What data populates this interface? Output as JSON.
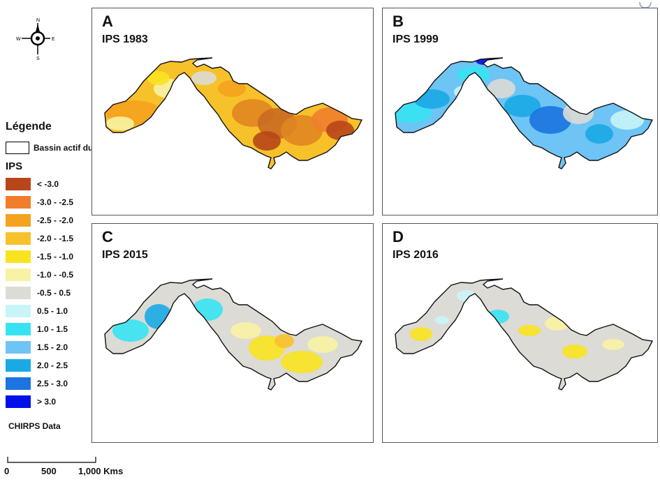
{
  "panels": [
    {
      "letter": "A",
      "title": "IPS 1983"
    },
    {
      "letter": "B",
      "title": "IPS 1999"
    },
    {
      "letter": "C",
      "title": "IPS 2015"
    },
    {
      "letter": "D",
      "title": "IPS 2016"
    }
  ],
  "compass": {
    "n": "N",
    "s": "S",
    "e": "E",
    "w": "W"
  },
  "legend": {
    "title": "Légende",
    "basin_label": "Bassin actif du Niger",
    "ips_title": "IPS",
    "classes": [
      {
        "label": "< -3.0",
        "color": "#b8461a"
      },
      {
        "label": "-3.0 - -2.5",
        "color": "#f07e2c"
      },
      {
        "label": "-2.5 - -2.0",
        "color": "#f5a21e"
      },
      {
        "label": "-2.0 - -1.5",
        "color": "#f7c12a"
      },
      {
        "label": "-1.5 - -1.0",
        "color": "#f8e320"
      },
      {
        "label": "-1.0 - -0.5",
        "color": "#f8f2a4"
      },
      {
        "label": "-0.5 - 0.5",
        "color": "#dcdbd5"
      },
      {
        "label": "0.5 - 1.0",
        "color": "#c8f5f8"
      },
      {
        "label": "1.0 - 1.5",
        "color": "#37e3f3"
      },
      {
        "label": "1.5 - 2.0",
        "color": "#6ec4f4"
      },
      {
        "label": "2.0 - 2.5",
        "color": "#19aae6"
      },
      {
        "label": "2.5 - 3.0",
        "color": "#1b74e0"
      },
      {
        "label": "> 3.0",
        "color": "#0010e8"
      }
    ],
    "source": "CHIRPS Data"
  },
  "scale": {
    "labels": [
      "0",
      "500",
      "1,000 Kms"
    ]
  }
}
